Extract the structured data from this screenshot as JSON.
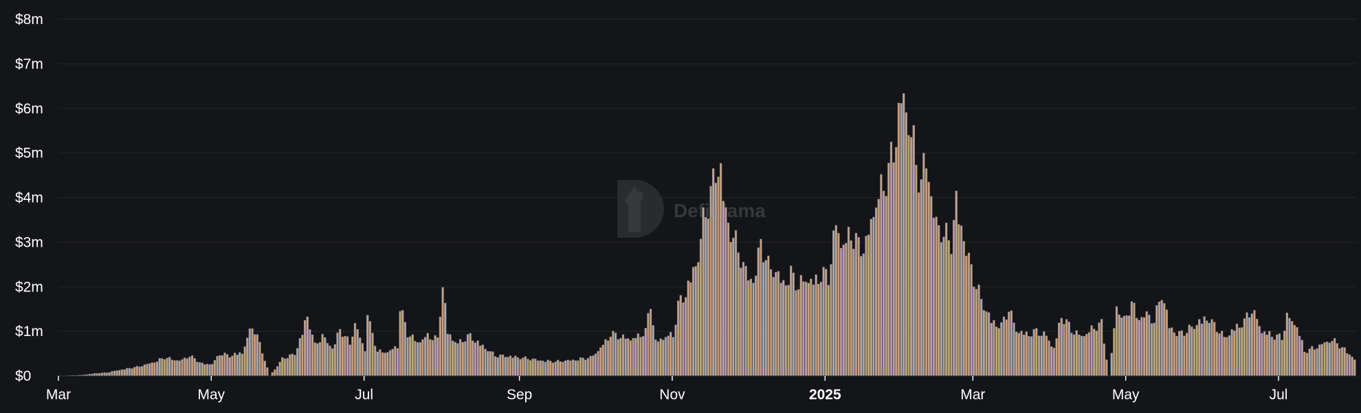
{
  "watermark": {
    "text": "DefiLlama"
  },
  "colors": {
    "background": "#141518",
    "bar": "#c9a27e",
    "bar_edge": "#6d86b8",
    "grid": "#25272b",
    "text": "#ffffff"
  },
  "chart_data": {
    "type": "bar",
    "title": "",
    "xlabel": "",
    "ylabel": "",
    "ylim": [
      0,
      8
    ],
    "yunit": "$m",
    "grid": true,
    "y_ticks": [
      "$0",
      "$1m",
      "$2m",
      "$3m",
      "$4m",
      "$5m",
      "$6m",
      "$7m",
      "$8m"
    ],
    "x_ticks": [
      {
        "label": "Mar",
        "date": "2024-03-01",
        "bold": false
      },
      {
        "label": "May",
        "date": "2024-05-01",
        "bold": false
      },
      {
        "label": "Jul",
        "date": "2024-07-01",
        "bold": false
      },
      {
        "label": "Sep",
        "date": "2024-09-01",
        "bold": false
      },
      {
        "label": "Nov",
        "date": "2024-11-01",
        "bold": false
      },
      {
        "label": "2025",
        "date": "2025-01-01",
        "bold": true
      },
      {
        "label": "Mar",
        "date": "2025-03-01",
        "bold": false
      },
      {
        "label": "May",
        "date": "2025-05-01",
        "bold": false
      },
      {
        "label": "Jul",
        "date": "2025-07-01",
        "bold": false
      }
    ],
    "x_range": [
      "2024-03-01",
      "2025-08-01"
    ],
    "series": [
      {
        "values_by_date": [
          [
            "2024-03-01",
            0.0
          ],
          [
            "2024-03-10",
            0.02
          ],
          [
            "2024-03-15",
            0.06
          ],
          [
            "2024-03-20",
            0.08
          ],
          [
            "2024-03-25",
            0.15
          ],
          [
            "2024-04-01",
            0.22
          ],
          [
            "2024-04-08",
            0.35
          ],
          [
            "2024-04-12",
            0.45
          ],
          [
            "2024-04-18",
            0.38
          ],
          [
            "2024-04-22",
            0.5
          ],
          [
            "2024-04-27",
            0.3
          ],
          [
            "2024-05-01",
            0.3
          ],
          [
            "2024-05-04",
            0.55
          ],
          [
            "2024-05-08",
            0.5
          ],
          [
            "2024-05-13",
            0.6
          ],
          [
            "2024-05-17",
            1.25
          ],
          [
            "2024-05-20",
            0.8
          ],
          [
            "2024-05-24",
            0.0
          ],
          [
            "2024-05-29",
            0.42
          ],
          [
            "2024-06-03",
            0.55
          ],
          [
            "2024-06-08",
            1.5
          ],
          [
            "2024-06-11",
            0.75
          ],
          [
            "2024-06-14",
            1.0
          ],
          [
            "2024-06-18",
            0.7
          ],
          [
            "2024-06-21",
            1.15
          ],
          [
            "2024-06-25",
            0.8
          ],
          [
            "2024-06-27",
            1.3
          ],
          [
            "2024-07-01",
            0.65
          ],
          [
            "2024-07-01",
            2.0
          ],
          [
            "2024-07-03",
            1.25
          ],
          [
            "2024-07-06",
            0.6
          ],
          [
            "2024-07-10",
            0.6
          ],
          [
            "2024-07-14",
            0.75
          ],
          [
            "2024-07-15",
            1.72
          ],
          [
            "2024-07-18",
            1.05
          ],
          [
            "2024-07-22",
            0.85
          ],
          [
            "2024-07-26",
            1.0
          ],
          [
            "2024-07-30",
            0.9
          ],
          [
            "2024-08-01",
            2.32
          ],
          [
            "2024-08-03",
            1.1
          ],
          [
            "2024-08-07",
            0.8
          ],
          [
            "2024-08-12",
            1.0
          ],
          [
            "2024-08-17",
            0.75
          ],
          [
            "2024-08-22",
            0.5
          ],
          [
            "2024-08-28",
            0.5
          ],
          [
            "2024-09-01",
            0.45
          ],
          [
            "2024-09-08",
            0.4
          ],
          [
            "2024-09-15",
            0.35
          ],
          [
            "2024-09-22",
            0.4
          ],
          [
            "2024-09-29",
            0.45
          ],
          [
            "2024-10-03",
            0.7
          ],
          [
            "2024-10-07",
            1.05
          ],
          [
            "2024-10-12",
            0.95
          ],
          [
            "2024-10-17",
            0.95
          ],
          [
            "2024-10-21",
            1.1
          ],
          [
            "2024-10-23",
            1.82
          ],
          [
            "2024-10-25",
            0.85
          ],
          [
            "2024-10-29",
            1.0
          ],
          [
            "2024-11-01",
            1.0
          ],
          [
            "2024-11-03",
            1.75
          ],
          [
            "2024-11-05",
            2.0
          ],
          [
            "2024-11-08",
            2.45
          ],
          [
            "2024-11-11",
            3.0
          ],
          [
            "2024-11-13",
            3.8
          ],
          [
            "2024-11-16",
            4.5
          ],
          [
            "2024-11-18",
            5.2
          ],
          [
            "2024-11-20",
            5.3
          ],
          [
            "2024-11-22",
            4.0
          ],
          [
            "2024-11-24",
            3.6
          ],
          [
            "2024-11-27",
            3.1
          ],
          [
            "2024-11-30",
            2.6
          ],
          [
            "2024-12-03",
            2.4
          ],
          [
            "2024-12-06",
            3.3
          ],
          [
            "2024-12-09",
            2.7
          ],
          [
            "2024-12-12",
            2.6
          ],
          [
            "2024-12-15",
            2.35
          ],
          [
            "2024-12-18",
            2.55
          ],
          [
            "2024-12-21",
            2.2
          ],
          [
            "2024-12-24",
            2.45
          ],
          [
            "2024-12-27",
            2.35
          ],
          [
            "2024-12-30",
            2.55
          ],
          [
            "2025-01-02",
            2.45
          ],
          [
            "2025-01-05",
            3.8
          ],
          [
            "2025-01-08",
            3.3
          ],
          [
            "2025-01-11",
            3.55
          ],
          [
            "2025-01-14",
            3.2
          ],
          [
            "2025-01-17",
            3.3
          ],
          [
            "2025-01-20",
            4.2
          ],
          [
            "2025-01-23",
            4.6
          ],
          [
            "2025-01-26",
            5.0
          ],
          [
            "2025-01-29",
            6.2
          ],
          [
            "2025-01-31",
            7.05
          ],
          [
            "2025-02-02",
            6.7
          ],
          [
            "2025-02-04",
            6.0
          ],
          [
            "2025-02-06",
            5.3
          ],
          [
            "2025-02-08",
            4.7
          ],
          [
            "2025-02-10",
            5.65
          ],
          [
            "2025-02-12",
            4.5
          ],
          [
            "2025-02-14",
            3.8
          ],
          [
            "2025-02-17",
            3.5
          ],
          [
            "2025-02-20",
            3.3
          ],
          [
            "2025-02-22",
            4.35
          ],
          [
            "2025-02-24",
            3.8
          ],
          [
            "2025-02-27",
            2.9
          ],
          [
            "2025-03-02",
            2.2
          ],
          [
            "2025-03-05",
            1.75
          ],
          [
            "2025-03-08",
            1.4
          ],
          [
            "2025-03-12",
            1.25
          ],
          [
            "2025-03-15",
            1.65
          ],
          [
            "2025-03-18",
            1.15
          ],
          [
            "2025-03-22",
            1.05
          ],
          [
            "2025-03-26",
            1.1
          ],
          [
            "2025-03-30",
            1.0
          ],
          [
            "2025-04-02",
            0.7
          ],
          [
            "2025-04-05",
            1.5
          ],
          [
            "2025-04-09",
            1.15
          ],
          [
            "2025-04-13",
            1.0
          ],
          [
            "2025-04-17",
            1.15
          ],
          [
            "2025-04-21",
            1.3
          ],
          [
            "2025-04-24",
            0.0
          ],
          [
            "2025-04-27",
            1.75
          ],
          [
            "2025-04-30",
            1.35
          ],
          [
            "2025-05-03",
            1.8
          ],
          [
            "2025-05-06",
            1.45
          ],
          [
            "2025-05-09",
            1.55
          ],
          [
            "2025-05-12",
            1.35
          ],
          [
            "2025-05-15",
            2.05
          ],
          [
            "2025-05-18",
            1.3
          ],
          [
            "2025-05-21",
            1.05
          ],
          [
            "2025-05-25",
            1.1
          ],
          [
            "2025-05-29",
            1.3
          ],
          [
            "2025-06-02",
            1.5
          ],
          [
            "2025-06-05",
            1.25
          ],
          [
            "2025-06-09",
            0.95
          ],
          [
            "2025-06-13",
            1.2
          ],
          [
            "2025-06-17",
            1.35
          ],
          [
            "2025-06-20",
            1.65
          ],
          [
            "2025-06-24",
            1.15
          ],
          [
            "2025-06-28",
            1.0
          ],
          [
            "2025-07-02",
            0.95
          ],
          [
            "2025-07-04",
            1.5
          ],
          [
            "2025-07-08",
            1.25
          ],
          [
            "2025-07-11",
            0.6
          ],
          [
            "2025-07-15",
            0.7
          ],
          [
            "2025-07-18",
            0.8
          ],
          [
            "2025-07-22",
            0.9
          ],
          [
            "2025-07-26",
            0.7
          ],
          [
            "2025-07-29",
            0.55
          ],
          [
            "2025-08-01",
            0.35
          ]
        ]
      }
    ]
  }
}
